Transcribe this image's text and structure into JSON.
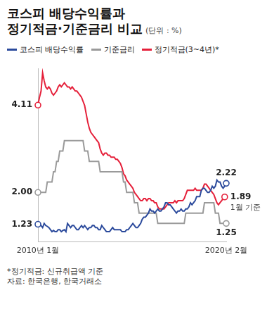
{
  "chart_data": {
    "type": "line",
    "title": [
      "코스피 배당수익률과",
      "정기적금·기준금리 비교"
    ],
    "subtitle": "(단위 : %)",
    "legend": "top",
    "grid": false,
    "tick_labels": "x",
    "ylim": [
      0.8,
      5.0
    ],
    "yticks": [],
    "categories": [
      "2010년 1월",
      null,
      null,
      null,
      null,
      null,
      null,
      null,
      null,
      null,
      null,
      null,
      null,
      null,
      null,
      null,
      null,
      null,
      null,
      null,
      null,
      null,
      null,
      null,
      null,
      null,
      null,
      null,
      null,
      null,
      null,
      null,
      null,
      null,
      null,
      null,
      null,
      null,
      null,
      null,
      null,
      null,
      null,
      null,
      null,
      null,
      null,
      null,
      null,
      null,
      null,
      null,
      null,
      null,
      null,
      null,
      null,
      null,
      null,
      null,
      null,
      null,
      null,
      null,
      null,
      null,
      null,
      null,
      null,
      null,
      null,
      null,
      null,
      null,
      null,
      null,
      null,
      null,
      null,
      null,
      null,
      null,
      null,
      null,
      null,
      null,
      null,
      null,
      null,
      null,
      null,
      null,
      null,
      null,
      null,
      null,
      null,
      null,
      null,
      null,
      null,
      null,
      null,
      null,
      null,
      null,
      null,
      null,
      null,
      null,
      null,
      null,
      null,
      null,
      null,
      null,
      null,
      null,
      null,
      null,
      null,
      "2020년 2월"
    ],
    "series": [
      {
        "name": "코스피 배당수익률",
        "color": "#2b4a9c",
        "marker": "none",
        "line_style": "solid",
        "values": [
          1.23,
          1.25,
          1.2,
          1.15,
          1.25,
          1.2,
          1.18,
          1.15,
          1.1,
          1.05,
          1.08,
          1.05,
          1.05,
          1.1,
          1.1,
          1.05,
          1.08,
          1.1,
          1.05,
          1.25,
          1.2,
          1.15,
          1.2,
          1.2,
          1.15,
          1.1,
          1.1,
          1.15,
          1.2,
          1.15,
          1.2,
          1.15,
          1.1,
          1.15,
          1.15,
          1.2,
          1.2,
          1.15,
          1.15,
          1.1,
          1.1,
          1.2,
          1.15,
          1.1,
          1.05,
          1.05,
          1.05,
          1.1,
          1.15,
          1.1,
          1.1,
          1.1,
          1.1,
          1.1,
          1.05,
          1.05,
          1.05,
          1.1,
          1.1,
          1.15,
          1.2,
          1.25,
          1.2,
          1.15,
          1.15,
          1.2,
          1.25,
          1.35,
          1.4,
          1.4,
          1.45,
          1.5,
          1.6,
          1.55,
          1.55,
          1.5,
          1.55,
          1.6,
          1.55,
          1.55,
          1.6,
          1.65,
          1.75,
          1.75,
          1.7,
          1.7,
          1.65,
          1.6,
          1.55,
          1.5,
          1.55,
          1.55,
          1.6,
          1.55,
          1.55,
          1.6,
          1.6,
          1.65,
          1.75,
          1.7,
          1.75,
          1.8,
          1.9,
          1.9,
          1.9,
          2.05,
          2.1,
          2.1,
          2.05,
          2.0,
          2.0,
          2.05,
          2.15,
          2.1,
          2.15,
          2.3,
          2.25,
          2.25,
          2.15,
          2.1,
          2.15,
          2.22
        ]
      },
      {
        "name": "기준금리",
        "color": "#9a9a9a",
        "marker": "none",
        "line_style": "solid",
        "values": [
          2.0,
          2.0,
          2.0,
          2.0,
          2.0,
          2.0,
          2.25,
          2.25,
          2.25,
          2.25,
          2.5,
          2.5,
          2.75,
          2.75,
          3.0,
          3.0,
          3.0,
          3.25,
          3.25,
          3.25,
          3.25,
          3.25,
          3.25,
          3.25,
          3.25,
          3.25,
          3.25,
          3.25,
          3.25,
          3.25,
          3.0,
          3.0,
          3.0,
          2.75,
          2.75,
          2.75,
          2.75,
          2.75,
          2.75,
          2.75,
          2.5,
          2.5,
          2.5,
          2.5,
          2.5,
          2.5,
          2.5,
          2.5,
          2.5,
          2.5,
          2.5,
          2.5,
          2.5,
          2.5,
          2.5,
          2.25,
          2.25,
          2.0,
          2.0,
          2.0,
          2.0,
          2.0,
          1.75,
          1.75,
          1.75,
          1.5,
          1.5,
          1.5,
          1.5,
          1.5,
          1.5,
          1.5,
          1.5,
          1.5,
          1.5,
          1.5,
          1.5,
          1.25,
          1.25,
          1.25,
          1.25,
          1.25,
          1.25,
          1.25,
          1.25,
          1.25,
          1.25,
          1.25,
          1.25,
          1.25,
          1.25,
          1.25,
          1.25,
          1.25,
          1.25,
          1.5,
          1.5,
          1.5,
          1.5,
          1.5,
          1.5,
          1.5,
          1.5,
          1.5,
          1.5,
          1.5,
          1.5,
          1.75,
          1.75,
          1.75,
          1.75,
          1.75,
          1.75,
          1.75,
          1.5,
          1.5,
          1.5,
          1.25,
          1.25,
          1.25,
          1.25,
          1.25
        ]
      },
      {
        "name": "정기적금(3~4년)*",
        "color": "#e5203a",
        "marker": "none",
        "line_style": "solid",
        "values": [
          4.11,
          4.3,
          4.45,
          4.89,
          4.7,
          4.55,
          4.5,
          4.55,
          4.5,
          4.4,
          4.35,
          4.4,
          4.45,
          4.55,
          4.6,
          4.55,
          4.6,
          4.65,
          4.6,
          4.55,
          4.55,
          4.5,
          4.55,
          4.5,
          4.45,
          4.45,
          4.4,
          4.35,
          4.3,
          4.2,
          4.1,
          3.9,
          3.7,
          3.55,
          3.45,
          3.4,
          3.35,
          3.3,
          3.25,
          3.2,
          3.05,
          2.95,
          2.9,
          2.95,
          2.95,
          2.9,
          2.9,
          2.85,
          2.85,
          2.85,
          2.8,
          2.8,
          2.75,
          2.7,
          2.6,
          2.45,
          2.4,
          2.3,
          2.25,
          2.2,
          2.15,
          2.1,
          2.0,
          1.95,
          1.9,
          1.85,
          1.8,
          1.8,
          1.85,
          1.85,
          1.8,
          1.85,
          1.85,
          1.8,
          1.8,
          1.75,
          1.75,
          1.65,
          1.6,
          1.6,
          1.6,
          1.6,
          1.65,
          1.7,
          1.75,
          1.75,
          1.75,
          1.75,
          1.8,
          1.75,
          1.8,
          1.8,
          1.8,
          1.8,
          1.85,
          1.95,
          2.05,
          2.05,
          2.05,
          2.05,
          2.05,
          2.1,
          2.05,
          2.05,
          2.05,
          2.05,
          2.1,
          2.2,
          2.2,
          2.15,
          2.1,
          2.05,
          2.0,
          1.95,
          1.85,
          1.75,
          1.7,
          1.75,
          1.8,
          1.85,
          1.89,
          null
        ]
      }
    ],
    "annotations": [
      {
        "text": "4.11",
        "series": "정기적금(3~4년)*",
        "point": 0
      },
      {
        "text": "2.00",
        "series": "기준금리",
        "point": 0
      },
      {
        "text": "1.23",
        "series": "코스피 배당수익률",
        "point": 0
      },
      {
        "text": "2.22",
        "series": "코스피 배당수익률",
        "point": 121
      },
      {
        "text": "1.89",
        "series": "정기적금(3~4년)*",
        "point": 120
      },
      {
        "text": "1월 기준",
        "series": "정기적금(3~4년)*",
        "point": 120
      },
      {
        "text": "1.25",
        "series": "기준금리",
        "point": 121
      }
    ],
    "notes": [
      "*정기적금: 신규취급액 기준",
      "자료: 한국은행, 한국거래소"
    ]
  }
}
